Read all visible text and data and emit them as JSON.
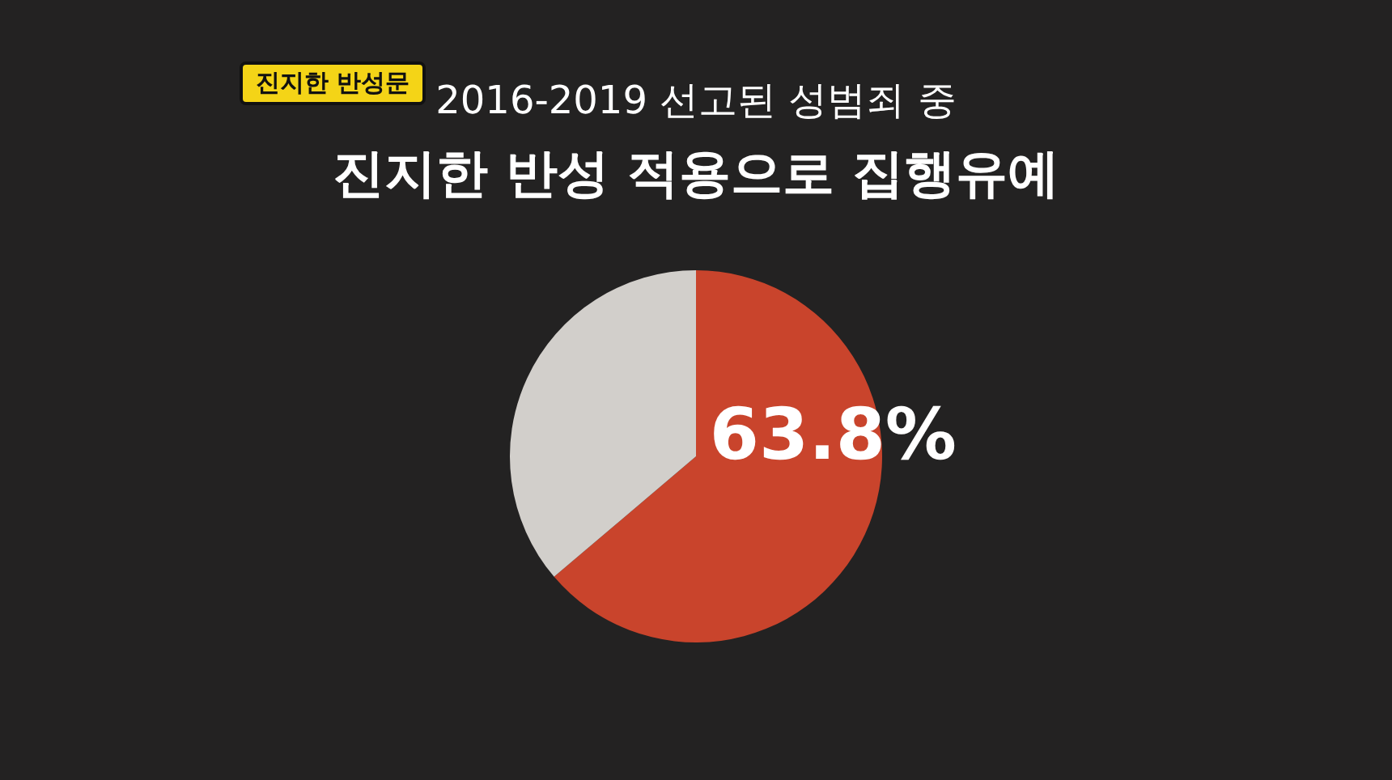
{
  "chart_data": {
    "type": "pie",
    "title": "2016-2019 선고된 성범죄 중",
    "subtitle": "진지한 반성 적용으로 집행유예",
    "annotations": [
      "진지한 반성문"
    ],
    "categories": [
      null,
      null
    ],
    "values": [
      63.8,
      36.2
    ],
    "colors": [
      "#c9442c",
      "#d2cfcb"
    ],
    "value_labels": [
      "63.8%",
      null
    ],
    "legend": false
  }
}
